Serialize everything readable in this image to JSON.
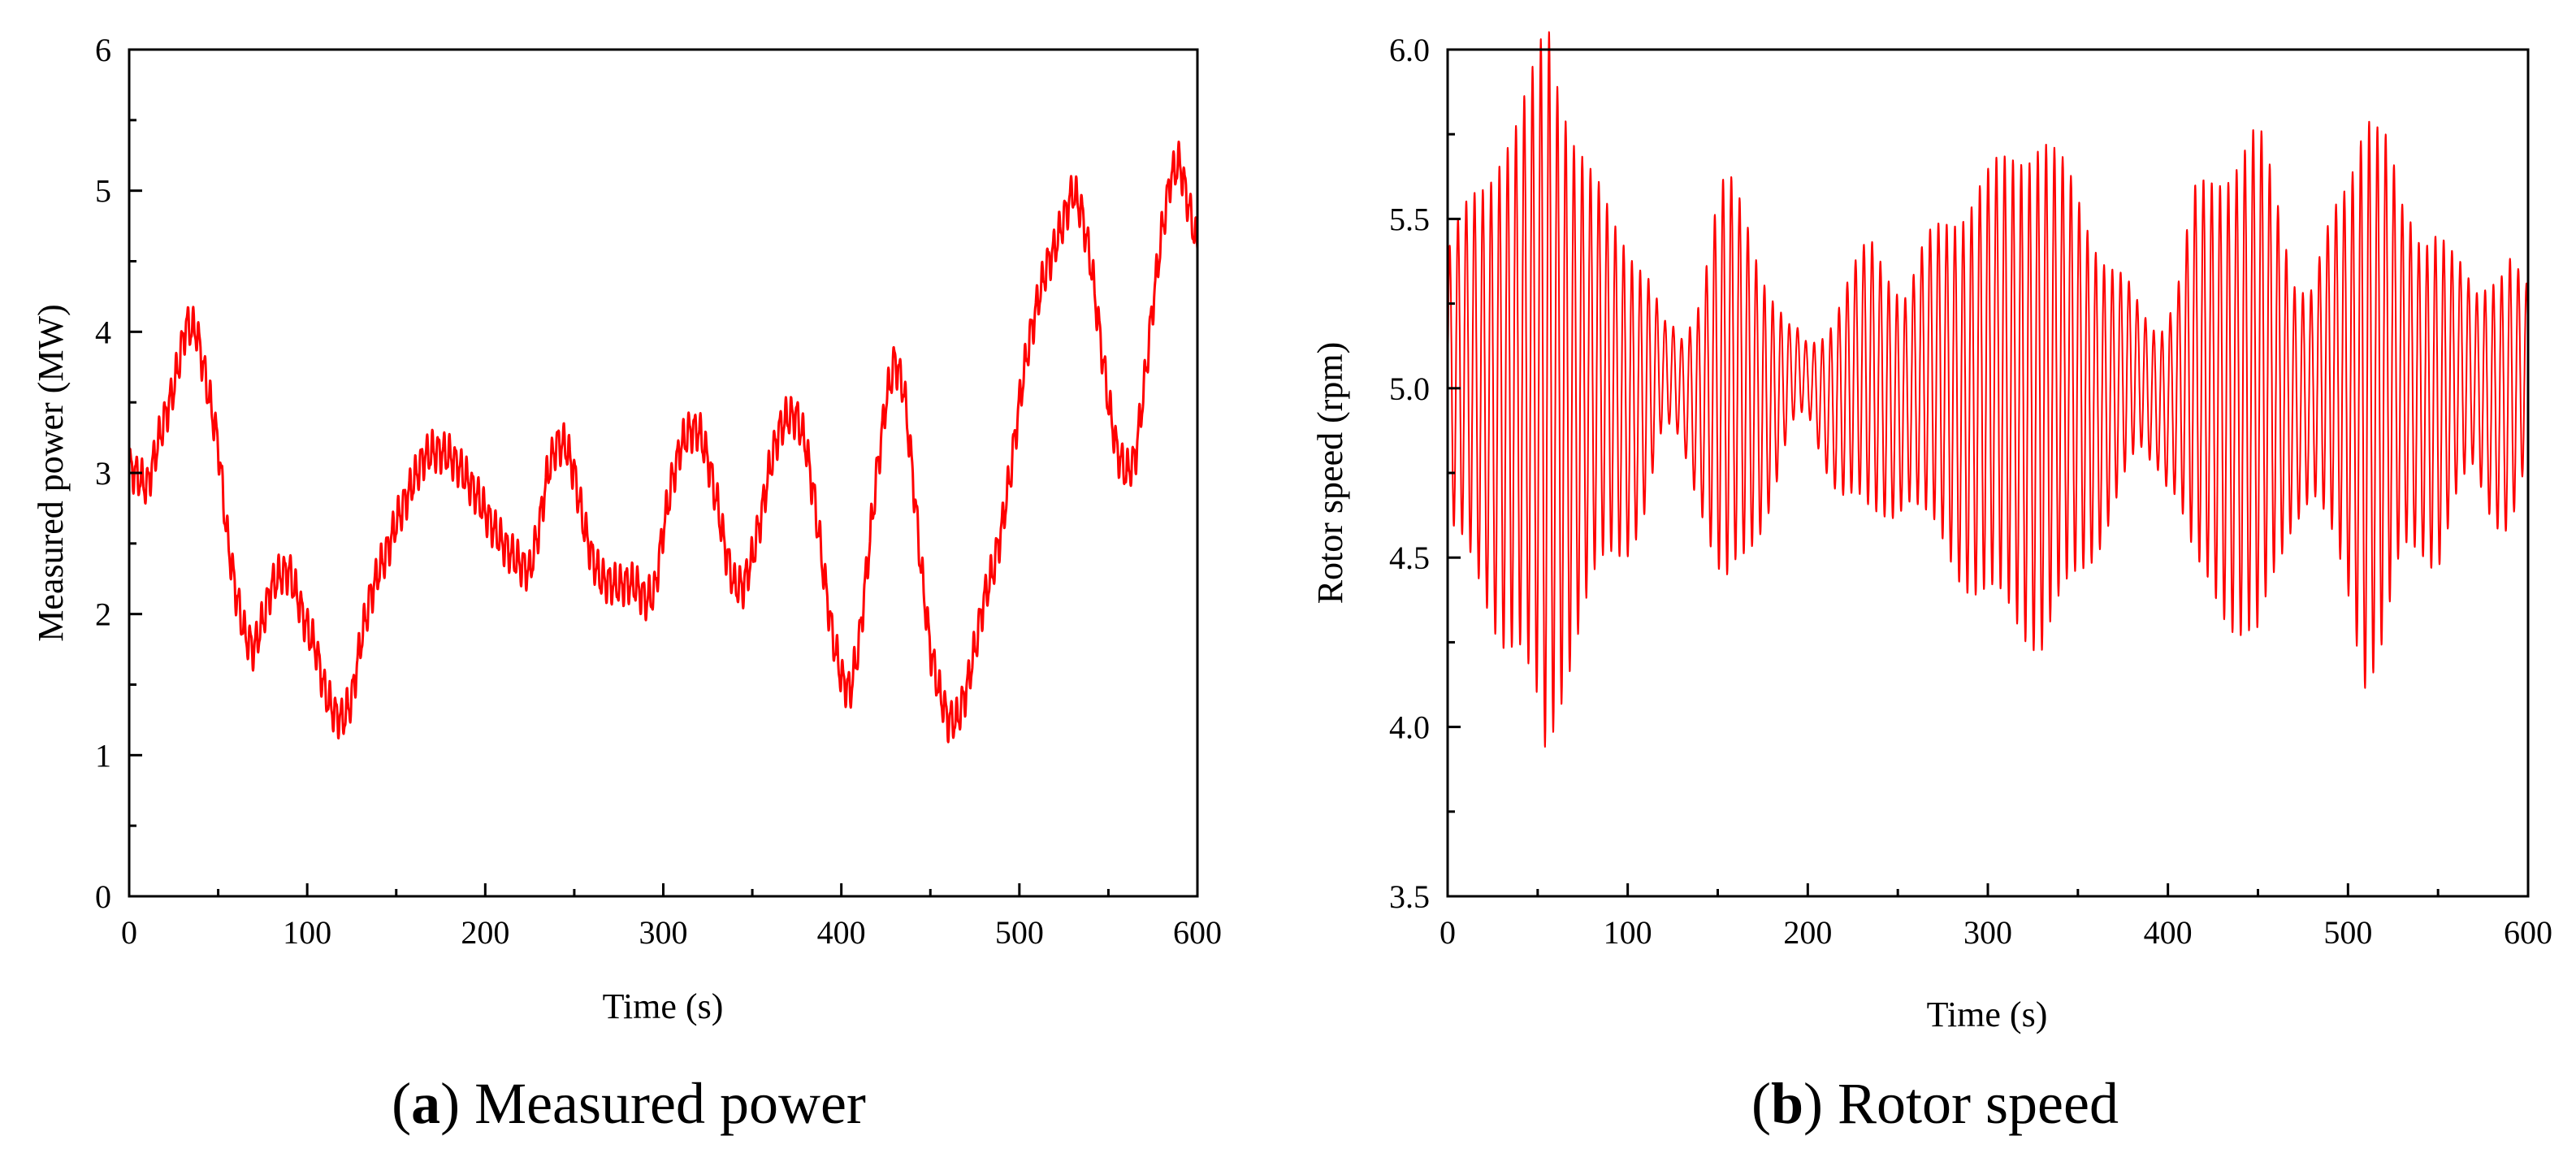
{
  "figure": {
    "captions": [
      {
        "letter": "a",
        "text": " Measured power"
      },
      {
        "letter": "b",
        "text": " Rotor speed"
      }
    ]
  },
  "chart_data": [
    {
      "type": "line",
      "title": "",
      "xlabel": "Time (s)",
      "ylabel": "Measured power (MW)",
      "xlim": [
        0,
        600
      ],
      "ylim": [
        0,
        6
      ],
      "xticks": [
        0,
        100,
        200,
        300,
        400,
        500,
        600
      ],
      "yticks": [
        0,
        1,
        2,
        3,
        4,
        5,
        6
      ],
      "x_minor_step": 50,
      "y_minor_step": 0.5,
      "grid": false,
      "color": "#ff0000",
      "series": [
        {
          "name": "Measured power",
          "oscillation": {
            "period_s": 3.2,
            "amplitude": 0.12
          },
          "envelope": [
            [
              0,
              3.05
            ],
            [
              10,
              2.9
            ],
            [
              18,
              3.3
            ],
            [
              25,
              3.6
            ],
            [
              32,
              4.05
            ],
            [
              38,
              4.0
            ],
            [
              44,
              3.6
            ],
            [
              50,
              3.2
            ],
            [
              55,
              2.55
            ],
            [
              60,
              2.15
            ],
            [
              65,
              1.85
            ],
            [
              70,
              1.75
            ],
            [
              75,
              1.95
            ],
            [
              80,
              2.2
            ],
            [
              85,
              2.28
            ],
            [
              90,
              2.3
            ],
            [
              95,
              2.1
            ],
            [
              100,
              1.9
            ],
            [
              105,
              1.75
            ],
            [
              110,
              1.45
            ],
            [
              115,
              1.3
            ],
            [
              120,
              1.25
            ],
            [
              125,
              1.4
            ],
            [
              130,
              1.8
            ],
            [
              135,
              2.1
            ],
            [
              140,
              2.3
            ],
            [
              145,
              2.45
            ],
            [
              150,
              2.65
            ],
            [
              155,
              2.8
            ],
            [
              160,
              2.95
            ],
            [
              165,
              3.1
            ],
            [
              170,
              3.15
            ],
            [
              175,
              3.15
            ],
            [
              180,
              3.12
            ],
            [
              185,
              3.05
            ],
            [
              190,
              2.95
            ],
            [
              195,
              2.85
            ],
            [
              200,
              2.72
            ],
            [
              205,
              2.6
            ],
            [
              210,
              2.5
            ],
            [
              215,
              2.42
            ],
            [
              220,
              2.35
            ],
            [
              225,
              2.3
            ],
            [
              230,
              2.6
            ],
            [
              235,
              3.0
            ],
            [
              240,
              3.2
            ],
            [
              245,
              3.2
            ],
            [
              250,
              3.0
            ],
            [
              255,
              2.65
            ],
            [
              260,
              2.4
            ],
            [
              265,
              2.25
            ],
            [
              270,
              2.22
            ],
            [
              275,
              2.2
            ],
            [
              280,
              2.22
            ],
            [
              285,
              2.2
            ],
            [
              290,
              2.1
            ],
            [
              295,
              2.15
            ],
            [
              300,
              2.6
            ],
            [
              305,
              2.95
            ],
            [
              310,
              3.2
            ],
            [
              315,
              3.3
            ],
            [
              320,
              3.3
            ],
            [
              325,
              3.1
            ],
            [
              330,
              2.8
            ],
            [
              335,
              2.45
            ],
            [
              340,
              2.2
            ],
            [
              345,
              2.2
            ],
            [
              350,
              2.4
            ],
            [
              355,
              2.7
            ],
            [
              360,
              3.05
            ],
            [
              365,
              3.3
            ],
            [
              370,
              3.4
            ],
            [
              375,
              3.4
            ],
            [
              380,
              3.2
            ],
            [
              385,
              2.8
            ],
            [
              390,
              2.3
            ],
            [
              395,
              1.85
            ],
            [
              400,
              1.55
            ],
            [
              405,
              1.45
            ],
            [
              410,
              1.8
            ],
            [
              415,
              2.4
            ],
            [
              420,
              3.0
            ],
            [
              425,
              3.5
            ],
            [
              430,
              3.8
            ],
            [
              435,
              3.6
            ],
            [
              440,
              3.0
            ],
            [
              445,
              2.3
            ],
            [
              450,
              1.75
            ],
            [
              455,
              1.45
            ],
            [
              460,
              1.25
            ],
            [
              465,
              1.25
            ],
            [
              470,
              1.45
            ],
            [
              475,
              1.75
            ],
            [
              480,
              2.1
            ],
            [
              485,
              2.3
            ],
            [
              490,
              2.6
            ],
            [
              495,
              3.0
            ],
            [
              500,
              3.5
            ],
            [
              505,
              3.9
            ],
            [
              510,
              4.2
            ],
            [
              515,
              4.45
            ],
            [
              520,
              4.6
            ],
            [
              525,
              4.8
            ],
            [
              530,
              5.0
            ],
            [
              535,
              4.85
            ],
            [
              540,
              4.5
            ],
            [
              545,
              4.0
            ],
            [
              550,
              3.5
            ],
            [
              555,
              3.15
            ],
            [
              560,
              3.0
            ],
            [
              565,
              3.1
            ],
            [
              570,
              3.6
            ],
            [
              575,
              4.2
            ],
            [
              580,
              4.7
            ],
            [
              585,
              5.1
            ],
            [
              590,
              5.2
            ],
            [
              595,
              4.9
            ],
            [
              600,
              4.6
            ]
          ]
        }
      ]
    },
    {
      "type": "line",
      "title": "",
      "xlabel": "Time (s)",
      "ylabel": "Rotor speed (rpm)",
      "xlim": [
        0,
        600
      ],
      "ylim": [
        3.5,
        6.0
      ],
      "xticks": [
        0,
        100,
        200,
        300,
        400,
        500,
        600
      ],
      "yticks": [
        3.5,
        4.0,
        4.5,
        5.0,
        5.5,
        6.0
      ],
      "x_minor_step": 50,
      "y_minor_step": 0.25,
      "grid": false,
      "color": "#ff0000",
      "series": [
        {
          "name": "Rotor speed",
          "center": 5.0,
          "oscillation": {
            "period_s": 4.6
          },
          "amplitude_envelope": [
            [
              0,
              0.4
            ],
            [
              10,
              0.5
            ],
            [
              20,
              0.6
            ],
            [
              30,
              0.72
            ],
            [
              40,
              0.78
            ],
            [
              50,
              0.95
            ],
            [
              55,
              1.1
            ],
            [
              60,
              0.95
            ],
            [
              70,
              0.75
            ],
            [
              80,
              0.6
            ],
            [
              90,
              0.5
            ],
            [
              100,
              0.45
            ],
            [
              110,
              0.35
            ],
            [
              120,
              0.15
            ],
            [
              130,
              0.15
            ],
            [
              140,
              0.3
            ],
            [
              150,
              0.55
            ],
            [
              155,
              0.6
            ],
            [
              165,
              0.5
            ],
            [
              180,
              0.3
            ],
            [
              190,
              0.15
            ],
            [
              200,
              0.1
            ],
            [
              210,
              0.2
            ],
            [
              220,
              0.3
            ],
            [
              235,
              0.4
            ],
            [
              245,
              0.35
            ],
            [
              255,
              0.3
            ],
            [
              265,
              0.4
            ],
            [
              280,
              0.5
            ],
            [
              295,
              0.6
            ],
            [
              310,
              0.65
            ],
            [
              320,
              0.7
            ],
            [
              330,
              0.75
            ],
            [
              345,
              0.6
            ],
            [
              360,
              0.45
            ],
            [
              375,
              0.3
            ],
            [
              385,
              0.2
            ],
            [
              395,
              0.2
            ],
            [
              405,
              0.3
            ],
            [
              415,
              0.55
            ],
            [
              425,
              0.6
            ],
            [
              440,
              0.7
            ],
            [
              450,
              0.75
            ],
            [
              460,
              0.55
            ],
            [
              470,
              0.35
            ],
            [
              480,
              0.3
            ],
            [
              490,
              0.45
            ],
            [
              500,
              0.6
            ],
            [
              510,
              0.85
            ],
            [
              520,
              0.75
            ],
            [
              530,
              0.5
            ],
            [
              540,
              0.45
            ],
            [
              550,
              0.5
            ],
            [
              560,
              0.35
            ],
            [
              570,
              0.25
            ],
            [
              580,
              0.35
            ],
            [
              590,
              0.4
            ],
            [
              600,
              0.25
            ]
          ]
        }
      ]
    }
  ]
}
